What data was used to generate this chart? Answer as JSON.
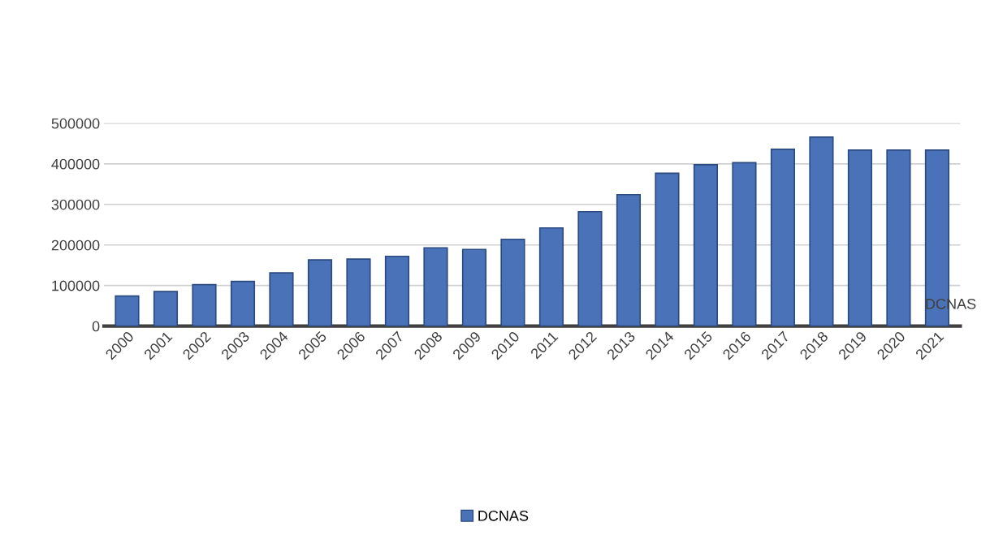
{
  "chart_data": {
    "type": "bar",
    "categories": [
      "2000",
      "2001",
      "2002",
      "2003",
      "2004",
      "2005",
      "2006",
      "2007",
      "2008",
      "2009",
      "2010",
      "2011",
      "2012",
      "2013",
      "2014",
      "2015",
      "2016",
      "2017",
      "2018",
      "2019",
      "2020",
      "2021"
    ],
    "series": [
      {
        "name": "DCNAS",
        "color": "#4a72b8",
        "values": [
          74000,
          85000,
          102000,
          110000,
          131000,
          163000,
          165000,
          172000,
          193000,
          189000,
          214000,
          242000,
          282000,
          324000,
          377000,
          398000,
          403000,
          436000,
          466000,
          434000,
          434000,
          434000
        ]
      }
    ],
    "ylim": [
      0,
      500000
    ],
    "yticks": [
      0,
      100000,
      200000,
      300000,
      400000,
      500000
    ],
    "grid": "y",
    "legend": "bottom"
  }
}
